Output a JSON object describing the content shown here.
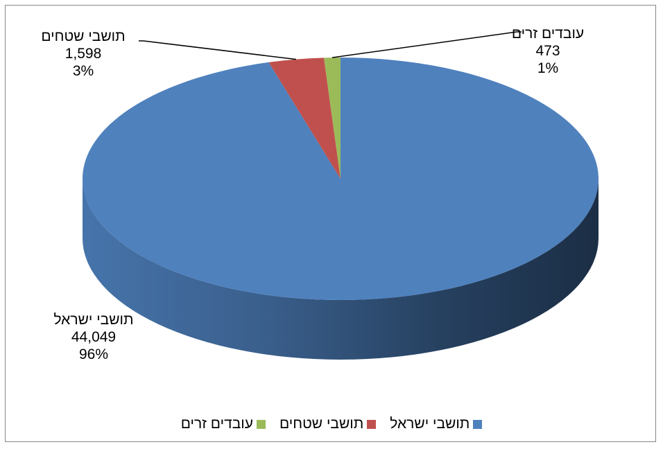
{
  "chart_data": {
    "type": "pie",
    "variant": "3d",
    "title": "",
    "categories": [
      "תושבי ישראל",
      "תושבי שטחים",
      "עובדים זרים"
    ],
    "values": [
      44049,
      1598,
      473
    ],
    "percent_labels": [
      "96%",
      "3%",
      "1%"
    ],
    "value_labels": [
      "44,049",
      "1,598",
      "473"
    ],
    "colors": [
      "#4F81BD",
      "#C0504D",
      "#9BBB59"
    ],
    "legend_position": "bottom"
  }
}
